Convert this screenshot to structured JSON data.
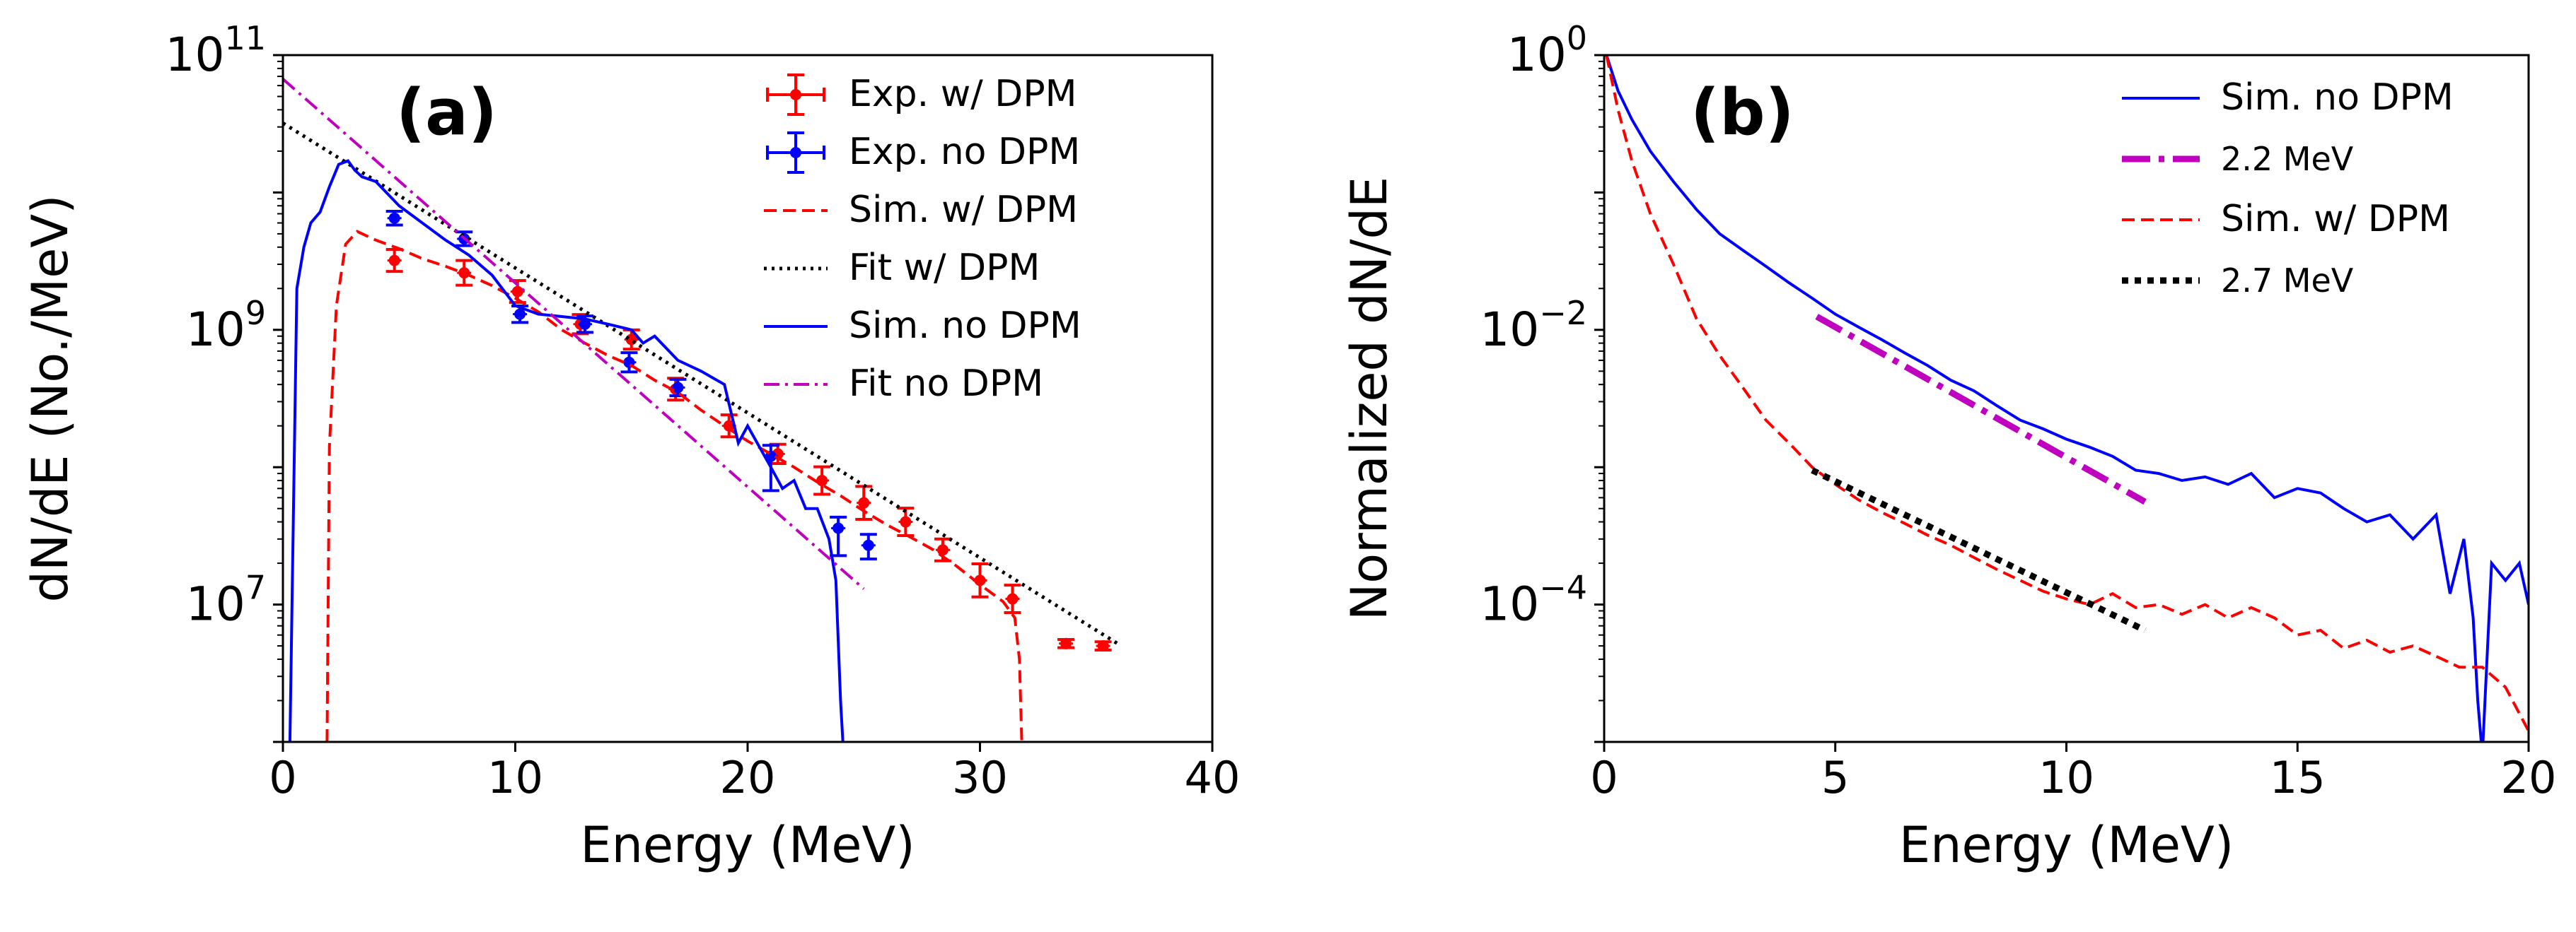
{
  "colors": {
    "red": "#ff0000",
    "blue": "#0000ff",
    "black": "#000000",
    "magenta": "#bf00bf"
  },
  "chart_data": [
    {
      "id": "a",
      "type": "line",
      "panel_label": "(a)",
      "xlabel": "Energy (MeV)",
      "ylabel": "dN/dE (No./MeV)",
      "xlim": [
        0,
        40
      ],
      "ylim_log10": [
        6,
        11
      ],
      "y_scale": "log",
      "x_ticks": [
        0,
        10,
        20,
        30,
        40
      ],
      "y_ticks": [
        {
          "base": "10",
          "exp": "11",
          "value": 11
        },
        {
          "base": "10",
          "exp": "9",
          "value": 9
        },
        {
          "base": "10",
          "exp": "7",
          "value": 7
        }
      ],
      "legend": [
        {
          "label": "Exp. w/ DPM",
          "style": "errorbar",
          "color": "red"
        },
        {
          "label": "Exp. no DPM",
          "style": "errorbar",
          "color": "blue"
        },
        {
          "label": "Sim. w/ DPM",
          "style": "dashed",
          "color": "red"
        },
        {
          "label": "Fit     w/ DPM",
          "style": "dotted",
          "color": "black"
        },
        {
          "label": "Sim. no DPM",
          "style": "solid",
          "color": "blue"
        },
        {
          "label": "Fit     no DPM",
          "style": "dashdot",
          "color": "magenta"
        }
      ],
      "series": [
        {
          "name": "Exp. w/ DPM",
          "kind": "errorbar",
          "color": "red",
          "x": [
            4.8,
            7.8,
            10.1,
            12.8,
            15.0,
            16.9,
            19.2,
            21.3,
            23.2,
            25.0,
            26.8,
            28.4,
            30.0,
            31.4,
            33.7,
            35.3
          ],
          "y": [
            3200000000.0,
            2600000000.0,
            1900000000.0,
            1100000000.0,
            850000000.0,
            370000000.0,
            200000000.0,
            125000000.0,
            80000000.0,
            55000000.0,
            40000000.0,
            25000000.0,
            15000000.0,
            11000000.0,
            5200000.0,
            5000000.0
          ],
          "err_lo": [
            0.08,
            0.09,
            0.08,
            0.07,
            0.07,
            0.08,
            0.08,
            0.07,
            0.1,
            0.12,
            0.1,
            0.08,
            0.12,
            0.1,
            0.03,
            0.03
          ],
          "err_hi": [
            0.08,
            0.09,
            0.08,
            0.07,
            0.07,
            0.08,
            0.08,
            0.07,
            0.1,
            0.12,
            0.1,
            0.08,
            0.12,
            0.1,
            0.03,
            0.03
          ]
        },
        {
          "name": "Exp. no DPM",
          "kind": "errorbar",
          "color": "blue",
          "x": [
            4.8,
            7.8,
            10.2,
            13.0,
            14.9,
            17.0,
            21.0,
            23.9,
            25.2
          ],
          "y": [
            6500000000.0,
            4600000000.0,
            1300000000.0,
            1100000000.0,
            580000000.0,
            380000000.0,
            120000000.0,
            36000000.0,
            27000000.0
          ],
          "err_lo": [
            0.05,
            0.05,
            0.06,
            0.06,
            0.07,
            0.06,
            0.25,
            0.2,
            0.1
          ],
          "err_hi": [
            0.05,
            0.05,
            0.06,
            0.06,
            0.07,
            0.06,
            0.08,
            0.08,
            0.08
          ]
        },
        {
          "name": "Sim. w/ DPM",
          "kind": "dashed",
          "color": "red",
          "x": [
            1.9,
            2.0,
            2.3,
            2.7,
            3.2,
            4,
            5,
            6,
            7,
            8,
            9,
            10,
            11,
            12,
            13,
            14,
            15,
            16,
            17,
            18,
            19,
            20,
            21,
            22,
            23,
            24,
            25,
            26,
            27,
            28,
            29,
            30,
            31,
            31.5,
            31.7,
            31.8
          ],
          "y": [
            1000000.0,
            140000000.0,
            1500000000.0,
            4200000000.0,
            5200000000.0,
            4500000000.0,
            3900000000.0,
            3300000000.0,
            2900000000.0,
            2500000000.0,
            2100000000.0,
            1700000000.0,
            1350000000.0,
            1000000000.0,
            800000000.0,
            650000000.0,
            550000000.0,
            430000000.0,
            350000000.0,
            260000000.0,
            200000000.0,
            155000000.0,
            125000000.0,
            100000000.0,
            78000000.0,
            62000000.0,
            48000000.0,
            38000000.0,
            31000000.0,
            25000000.0,
            19000000.0,
            14000000.0,
            10500000.0,
            8000000.0,
            4000000.0,
            1000000.0
          ]
        },
        {
          "name": "Fit w/ DPM",
          "kind": "dotted",
          "color": "black",
          "x": [
            0,
            36
          ],
          "y": [
            32000000000.0,
            5100000.0
          ]
        },
        {
          "name": "Sim. no DPM",
          "kind": "solid",
          "color": "blue",
          "x": [
            0.3,
            0.6,
            0.9,
            1.2,
            1.6,
            2.0,
            2.4,
            2.8,
            3.1,
            3.4,
            4,
            5,
            6,
            7,
            8,
            9,
            10,
            11,
            12,
            13,
            14,
            15,
            15.5,
            16,
            17,
            18,
            19,
            19.6,
            20,
            21,
            21.5,
            22,
            22.5,
            23,
            23.5,
            23.8,
            24.0,
            24.1
          ],
          "y": [
            1000000.0,
            2000000000.0,
            4000000000.0,
            6000000000.0,
            7200000000.0,
            11000000000.0,
            16000000000.0,
            17000000000.0,
            14500000000.0,
            13000000000.0,
            12000000000.0,
            8000000000.0,
            6000000000.0,
            4500000000.0,
            3500000000.0,
            2500000000.0,
            1500000000.0,
            1300000000.0,
            1250000000.0,
            1200000000.0,
            1100000000.0,
            1000000000.0,
            800000000.0,
            900000000.0,
            600000000.0,
            500000000.0,
            400000000.0,
            150000000.0,
            200000000.0,
            100000000.0,
            70000000.0,
            80000000.0,
            50000000.0,
            50000000.0,
            30000000.0,
            15000000.0,
            2000000.0,
            1000000.0
          ]
        },
        {
          "name": "Fit no DPM",
          "kind": "dashdot",
          "color": "magenta",
          "x": [
            0,
            25
          ],
          "y": [
            67000000000.0,
            13000000.0
          ]
        }
      ]
    },
    {
      "id": "b",
      "type": "line",
      "panel_label": "(b)",
      "xlabel": "Energy (MeV)",
      "ylabel": "Normalized dN/dE",
      "xlim": [
        0,
        20
      ],
      "ylim_log10": [
        -5,
        0
      ],
      "y_scale": "log",
      "x_ticks": [
        0,
        5,
        10,
        15,
        20
      ],
      "y_ticks": [
        {
          "base": "10",
          "exp": "0",
          "value": 0
        },
        {
          "base": "10",
          "exp": "−2",
          "value": -2
        },
        {
          "base": "10",
          "exp": "−4",
          "value": -4
        }
      ],
      "legend": [
        {
          "label": "Sim. no DPM",
          "style": "solid",
          "color": "blue"
        },
        {
          "label": "2.2 MeV",
          "style": "dashdot",
          "color": "magenta"
        },
        {
          "label": "Sim. w/ DPM",
          "style": "dashed",
          "color": "red"
        },
        {
          "label": "2.7 MeV",
          "style": "dotted",
          "color": "black"
        }
      ],
      "series": [
        {
          "name": "Sim. no DPM",
          "kind": "solid",
          "color": "blue",
          "x": [
            0.05,
            0.3,
            0.6,
            1,
            1.5,
            2,
            2.5,
            3,
            3.5,
            4,
            4.5,
            5,
            5.5,
            6,
            6.5,
            7,
            7.5,
            8,
            8.5,
            9,
            9.5,
            10,
            10.5,
            11,
            11.5,
            12,
            12.5,
            13,
            13.5,
            14,
            14.5,
            15,
            15.5,
            16,
            16.5,
            17,
            17.5,
            18,
            18.3,
            18.6,
            18.8,
            18.9,
            19.0,
            19.2,
            19.5,
            19.8,
            20
          ],
          "y": [
            1.0,
            0.55,
            0.34,
            0.2,
            0.12,
            0.075,
            0.05,
            0.038,
            0.029,
            0.022,
            0.017,
            0.013,
            0.0105,
            0.0085,
            0.0068,
            0.0055,
            0.0043,
            0.0036,
            0.0028,
            0.0022,
            0.0019,
            0.0016,
            0.0014,
            0.0012,
            0.00095,
            0.0009,
            0.0008,
            0.00085,
            0.00075,
            0.0009,
            0.0006,
            0.0007,
            0.00065,
            0.0005,
            0.0004,
            0.00045,
            0.0003,
            0.00045,
            0.00012,
            0.0003,
            8e-05,
            2e-05,
            8e-06,
            0.0002,
            0.00015,
            0.0002,
            0.0001
          ]
        },
        {
          "name": "2.2 MeV",
          "kind": "dashdot",
          "color": "magenta",
          "x": [
            4.6,
            11.7
          ],
          "y": [
            0.0125,
            0.00056
          ]
        },
        {
          "name": "Sim. w/ DPM",
          "kind": "dashed",
          "color": "red",
          "x": [
            0.05,
            0.3,
            0.6,
            1,
            1.5,
            2,
            2.5,
            3,
            3.5,
            4,
            4.5,
            5,
            5.5,
            6,
            6.5,
            7,
            7.5,
            8,
            8.5,
            9,
            9.5,
            10,
            10.5,
            11,
            11.5,
            12,
            12.5,
            13,
            13.5,
            14,
            14.5,
            15,
            15.5,
            16,
            16.5,
            17,
            17.5,
            18,
            18.5,
            19,
            19.5,
            20
          ],
          "y": [
            1.0,
            0.4,
            0.17,
            0.07,
            0.03,
            0.012,
            0.0065,
            0.0038,
            0.0022,
            0.0015,
            0.001,
            0.00075,
            0.00058,
            0.00047,
            0.00039,
            0.00032,
            0.00027,
            0.00022,
            0.00018,
            0.00015,
            0.000125,
            0.00011,
            0.0001,
            0.00012,
            9.5e-05,
            0.0001,
            8.5e-05,
            0.0001,
            8e-05,
            9.5e-05,
            8e-05,
            6e-05,
            6.5e-05,
            4.8e-05,
            5.5e-05,
            4.5e-05,
            5e-05,
            4.2e-05,
            3.5e-05,
            3.5e-05,
            2.5e-05,
            1.2e-05
          ]
        },
        {
          "name": "2.7 MeV",
          "kind": "dotted",
          "color": "black",
          "x": [
            4.5,
            11.7
          ],
          "y": [
            0.00095,
            6.5e-05
          ]
        }
      ]
    }
  ]
}
